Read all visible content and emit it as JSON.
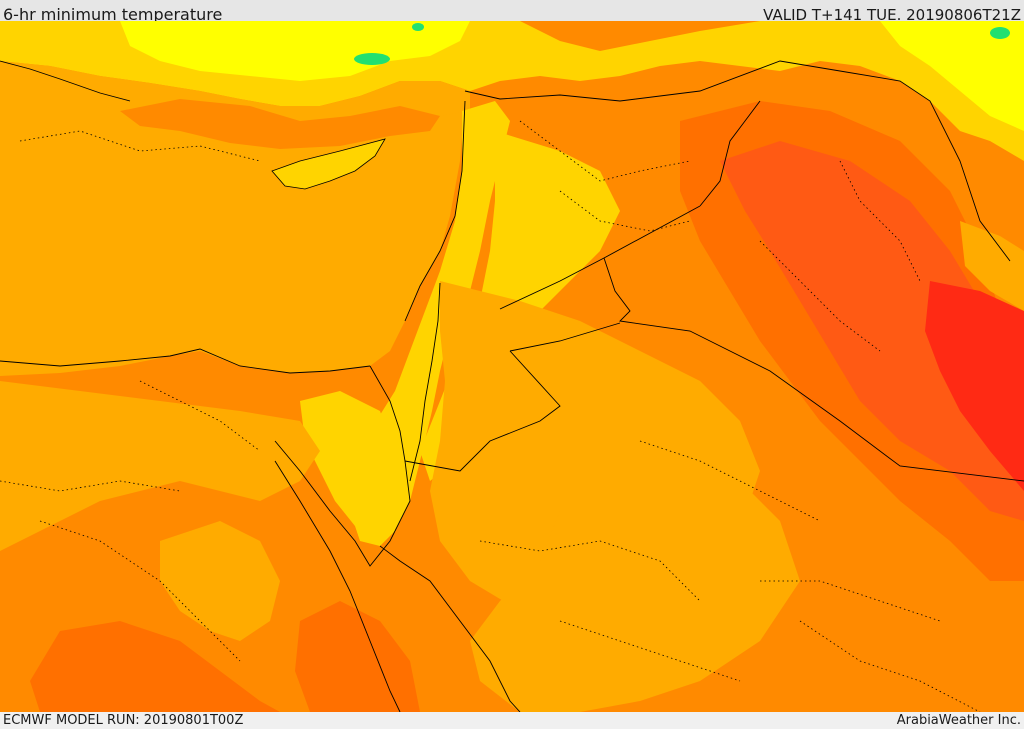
{
  "header": {
    "title": "6-hr minimum temperature",
    "valid": "VALID T+141 TUE. 20190806T21Z"
  },
  "footer": {
    "model_run": "ECMWF MODEL RUN: 20190801T00Z",
    "credit": "ArabiaWeather Inc."
  },
  "palette": {
    "sea_orange": "#ffab00",
    "warm_orange": "#ff8a00",
    "hot_orange": "#ff7000",
    "hotter_red": "#ff5a14",
    "hottest_red": "#ff2a14",
    "cool_yellow": "#ffd400",
    "cooler_yellow": "#ffff00",
    "cool_green": "#22e070",
    "border": "#000000"
  }
}
